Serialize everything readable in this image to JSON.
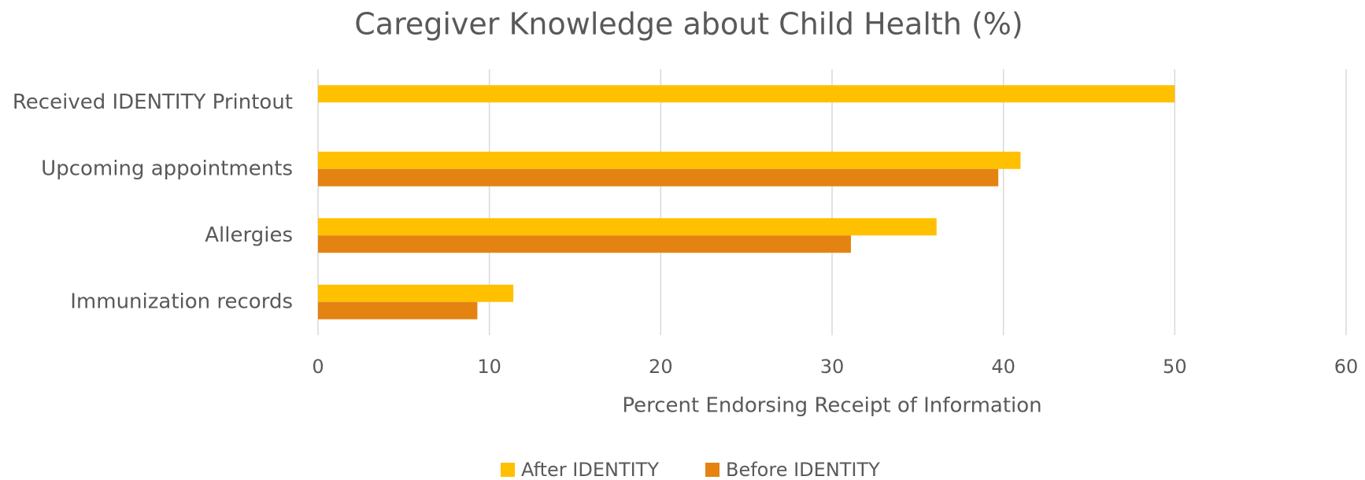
{
  "chart_data": {
    "type": "barh",
    "title": "Caregiver Knowledge about Child Health (%)",
    "x_label": "Percent Endorsing Receipt of Information",
    "categories": [
      "Received IDENTITY Printout",
      "Upcoming appointments",
      "Allergies",
      "Immunization records"
    ],
    "series": [
      {
        "name": "After IDENTITY",
        "color": "#FFC000",
        "values": [
          50,
          41,
          36.1,
          11.4
        ]
      },
      {
        "name": "Before IDENTITY",
        "color": "#E48312",
        "values": [
          null,
          39.7,
          31.1,
          9.3
        ]
      }
    ],
    "xlim": [
      0,
      60
    ],
    "xticks": [
      0,
      10,
      20,
      30,
      40,
      50,
      60
    ],
    "grid": true,
    "legend": "bottom"
  }
}
